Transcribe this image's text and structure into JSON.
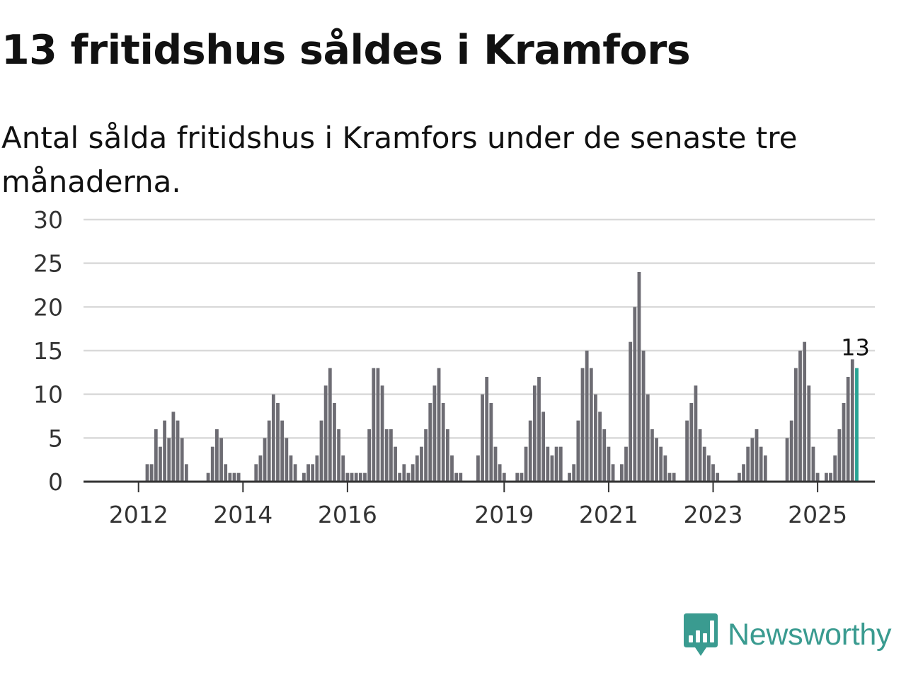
{
  "header": {
    "title": "13 fritidshus såldes i Kramfors",
    "subtitle": "Antal sålda fritidshus i Kramfors under de senaste tre månaderna."
  },
  "brand": {
    "logo_icon": "bar-chart-speech-bubble-icon",
    "name": "Newsworthy"
  },
  "colors": {
    "bar": "#6d6c73",
    "highlight": "#29a394",
    "grid": "#d9d9d9",
    "axis": "#333333",
    "brand": "#3a9b90"
  },
  "chart_data": {
    "type": "bar",
    "title": "13 fritidshus såldes i Kramfors",
    "subtitle": "Antal sålda fritidshus i Kramfors under de senaste tre månaderna.",
    "xlabel": "",
    "ylabel": "",
    "ylim": [
      0,
      30
    ],
    "yticks": [
      0,
      5,
      10,
      15,
      20,
      25,
      30
    ],
    "grid": true,
    "start_month": "2011-01",
    "xticks": [
      {
        "label": "2012",
        "month": "2012-01"
      },
      {
        "label": "2014",
        "month": "2014-01"
      },
      {
        "label": "2016",
        "month": "2016-01"
      },
      {
        "label": "2019",
        "month": "2019-01"
      },
      {
        "label": "2021",
        "month": "2021-01"
      },
      {
        "label": "2023",
        "month": "2023-01"
      },
      {
        "label": "2025",
        "month": "2025-01"
      }
    ],
    "values": [
      0,
      0,
      0,
      0,
      0,
      0,
      0,
      0,
      0,
      0,
      0,
      0,
      0,
      0,
      2,
      2,
      6,
      4,
      7,
      5,
      8,
      7,
      5,
      2,
      0,
      0,
      0,
      0,
      1,
      4,
      6,
      5,
      2,
      1,
      1,
      1,
      0,
      0,
      0,
      2,
      3,
      5,
      7,
      10,
      9,
      7,
      5,
      3,
      2,
      0,
      1,
      2,
      2,
      3,
      7,
      11,
      13,
      9,
      6,
      3,
      1,
      1,
      1,
      1,
      1,
      6,
      13,
      13,
      11,
      6,
      6,
      4,
      1,
      2,
      1,
      2,
      3,
      4,
      6,
      9,
      11,
      13,
      9,
      6,
      3,
      1,
      1,
      0,
      0,
      0,
      3,
      10,
      12,
      9,
      4,
      2,
      1,
      0,
      0,
      1,
      1,
      4,
      7,
      11,
      12,
      8,
      4,
      3,
      4,
      4,
      0,
      1,
      2,
      7,
      13,
      15,
      13,
      10,
      8,
      6,
      4,
      2,
      0,
      2,
      4,
      16,
      20,
      24,
      15,
      10,
      6,
      5,
      4,
      3,
      1,
      1,
      0,
      0,
      7,
      9,
      11,
      6,
      4,
      3,
      2,
      1,
      0,
      0,
      0,
      0,
      1,
      2,
      4,
      5,
      6,
      4,
      3,
      0,
      0,
      0,
      0,
      5,
      7,
      13,
      15,
      16,
      11,
      4,
      1,
      0,
      1,
      1,
      3,
      6,
      9,
      12,
      14,
      13
    ],
    "highlight_last": true,
    "annotations": [
      {
        "label": "13",
        "target": "last-bar"
      }
    ]
  }
}
